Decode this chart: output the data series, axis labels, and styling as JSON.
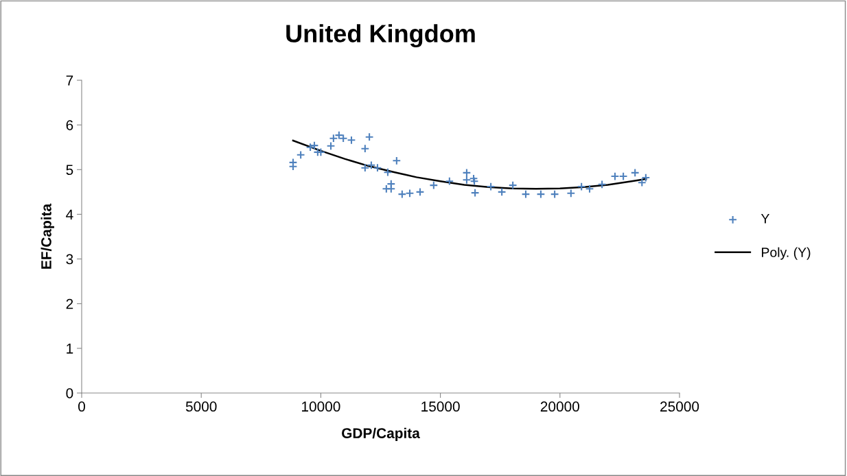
{
  "chart_data": {
    "type": "scatter",
    "title": "United Kingdom",
    "xlabel": "GDP/Capita",
    "ylabel": "EF/Capita",
    "xlim": [
      0,
      25000
    ],
    "xticks": [
      0,
      5000,
      10000,
      15000,
      20000,
      25000
    ],
    "ylim": [
      0,
      7
    ],
    "yticks": [
      0,
      1,
      2,
      3,
      4,
      5,
      6,
      7
    ],
    "grid": false,
    "legend": "right",
    "series": [
      {
        "name": "Y",
        "color": "#4f81bd",
        "marker": "cross",
        "x": [
          8840,
          8840,
          9160,
          9560,
          9730,
          9870,
          10000,
          10420,
          10530,
          10760,
          10940,
          11280,
          11850,
          12030,
          11850,
          12110,
          12370,
          12800,
          12740,
          12940,
          12940,
          13170,
          13400,
          13720,
          14150,
          14720,
          15380,
          16100,
          16100,
          16390,
          16420,
          16450,
          17110,
          17570,
          18030,
          18570,
          19200,
          19780,
          20460,
          20900,
          21240,
          21760,
          22300,
          22650,
          23140,
          23430,
          23590
        ],
        "values": [
          5.16,
          5.07,
          5.33,
          5.5,
          5.54,
          5.39,
          5.39,
          5.53,
          5.7,
          5.77,
          5.7,
          5.66,
          5.47,
          5.73,
          5.04,
          5.1,
          5.04,
          4.94,
          4.57,
          4.68,
          4.57,
          5.2,
          4.45,
          4.47,
          4.5,
          4.65,
          4.74,
          4.93,
          4.77,
          4.8,
          4.74,
          4.48,
          4.62,
          4.5,
          4.65,
          4.45,
          4.45,
          4.45,
          4.47,
          4.62,
          4.57,
          4.67,
          4.85,
          4.85,
          4.93,
          4.71,
          4.82
        ]
      },
      {
        "name": "Poly. (Y)",
        "color": "#000000",
        "type": "line",
        "line_style": "solid",
        "x": [
          8840,
          10000,
          11000,
          12000,
          13000,
          14000,
          15000,
          16000,
          17000,
          18000,
          19000,
          20000,
          21000,
          22000,
          23000,
          23600
        ],
        "values": [
          5.65,
          5.42,
          5.24,
          5.08,
          4.95,
          4.83,
          4.74,
          4.66,
          4.61,
          4.58,
          4.57,
          4.58,
          4.61,
          4.66,
          4.74,
          4.79
        ]
      }
    ]
  }
}
